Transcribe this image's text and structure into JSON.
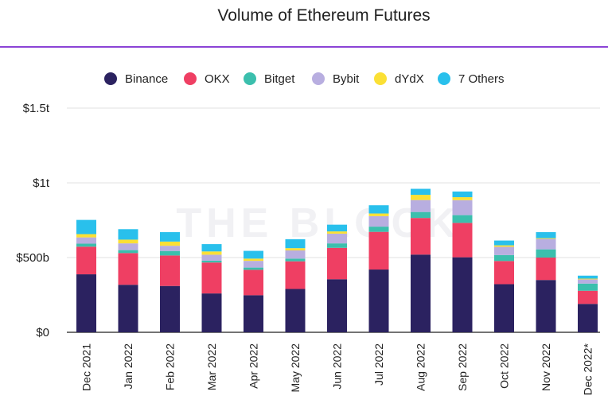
{
  "chart_data": {
    "type": "bar",
    "stacked": true,
    "title": "Volume of Ethereum Futures",
    "watermark": "THE BLOCK",
    "xlabel": "",
    "ylabel": "",
    "ylim": [
      0,
      1500
    ],
    "yticks": [
      0,
      500,
      1000,
      1500
    ],
    "ytick_labels": [
      "$0",
      "$500b",
      "$1t",
      "$1.5t"
    ],
    "grid": true,
    "legend_position": "top",
    "categories": [
      "Dec 2021",
      "Jan 2022",
      "Feb 2022",
      "Mar 2022",
      "Apr 2022",
      "May 2022",
      "Jun 2022",
      "Jul 2022",
      "Aug 2022",
      "Sep 2022",
      "Oct 2022",
      "Nov 2022",
      "Dec 2022*"
    ],
    "series": [
      {
        "name": "Binance",
        "color": "#2b2260",
        "values": [
          388,
          318,
          310,
          260,
          248,
          290,
          355,
          420,
          520,
          502,
          322,
          350,
          190
        ]
      },
      {
        "name": "OKX",
        "color": "#ef3f63",
        "values": [
          185,
          212,
          204,
          207,
          170,
          185,
          210,
          252,
          245,
          230,
          155,
          150,
          88
        ]
      },
      {
        "name": "Bitget",
        "color": "#3bbfad",
        "values": [
          20,
          20,
          30,
          12,
          15,
          18,
          30,
          35,
          40,
          52,
          40,
          55,
          48
        ]
      },
      {
        "name": "Bybit",
        "color": "#b8aee0",
        "values": [
          42,
          45,
          35,
          40,
          45,
          55,
          65,
          70,
          80,
          100,
          55,
          70,
          28
        ]
      },
      {
        "name": "dYdX",
        "color": "#fbe035",
        "values": [
          22,
          25,
          28,
          22,
          15,
          15,
          15,
          18,
          35,
          20,
          10,
          5,
          5
        ]
      },
      {
        "name": "7 Others",
        "color": "#29c0ec",
        "values": [
          95,
          70,
          63,
          49,
          52,
          60,
          45,
          55,
          40,
          38,
          32,
          40,
          20
        ]
      }
    ]
  },
  "colors": {
    "header_rule": "#8b43d6",
    "grid": "#e2e2e2",
    "axis": "#222222"
  }
}
